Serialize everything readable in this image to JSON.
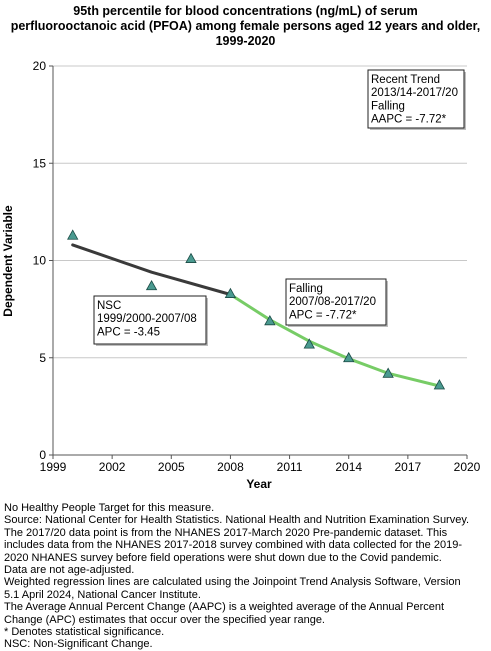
{
  "chart_data": {
    "type": "line",
    "title_lines": [
      "95th percentile for blood concentrations (ng/mL) of serum",
      "perfluorooctanoic acid (PFOA) among female persons aged 12 years and older,",
      "1999-2020"
    ],
    "xlabel": "Year",
    "ylabel": "Dependent Variable",
    "xlim": [
      1999,
      2020
    ],
    "ylim": [
      0,
      20
    ],
    "x_ticks": [
      1999,
      2002,
      2005,
      2008,
      2011,
      2014,
      2017,
      2020
    ],
    "y_ticks": [
      0,
      5,
      10,
      15,
      20
    ],
    "grid": "horizontal",
    "observed": {
      "x": [
        2000,
        2004,
        2006,
        2008,
        2010,
        2012,
        2014,
        2016,
        2018.6
      ],
      "y": [
        11.3,
        8.7,
        10.1,
        8.3,
        6.9,
        5.7,
        5.0,
        4.2,
        3.6
      ]
    },
    "segments": [
      {
        "x": [
          2000,
          2004,
          2008
        ],
        "y": [
          10.8,
          9.4,
          8.25
        ],
        "color": "#3a3a3a"
      },
      {
        "x": [
          2008,
          2010,
          2012,
          2014,
          2016,
          2018.6
        ],
        "y": [
          8.25,
          6.95,
          5.85,
          4.95,
          4.2,
          3.55
        ],
        "color": "#77cc66"
      }
    ],
    "annotations": [
      {
        "lines": [
          "NSC",
          "1999/2000-2007/08",
          "APC = -3.45"
        ]
      },
      {
        "lines": [
          "Falling",
          "2007/08-2017/20",
          "APC = -7.72*"
        ]
      },
      {
        "lines": [
          "Recent Trend",
          "2013/14-2017/20",
          "Falling",
          "AAPC = -7.72*"
        ]
      }
    ]
  },
  "notes": [
    "No Healthy People Target for this measure.",
    "Source: National Center for Health Statistics. National Health and Nutrition Examination Survey.",
    "The 2017/20 data point is from the NHANES 2017-March 2020 Pre-pandemic dataset. This",
    "includes data from the NHANES 2017-2018 survey combined with data collected for the 2019-",
    "2020 NHANES survey before field operations were shut down due to the Covid pandemic.",
    "Data are not age-adjusted.",
    "Weighted regression lines are calculated using the Joinpoint Trend Analysis Software, Version",
    "5.1 April 2024, National Cancer Institute.",
    "The Average Annual Percent Change (AAPC) is a weighted average of the Annual Percent",
    "Change (APC) estimates that occur over the specified year range.",
    "* Denotes statistical significance.",
    "NSC: Non-Significant Change."
  ],
  "colors": {
    "marker_fill": "#4a9a90",
    "marker_stroke": "#1a4a44",
    "grid": "#c8c8c8",
    "axis": "#555555"
  }
}
